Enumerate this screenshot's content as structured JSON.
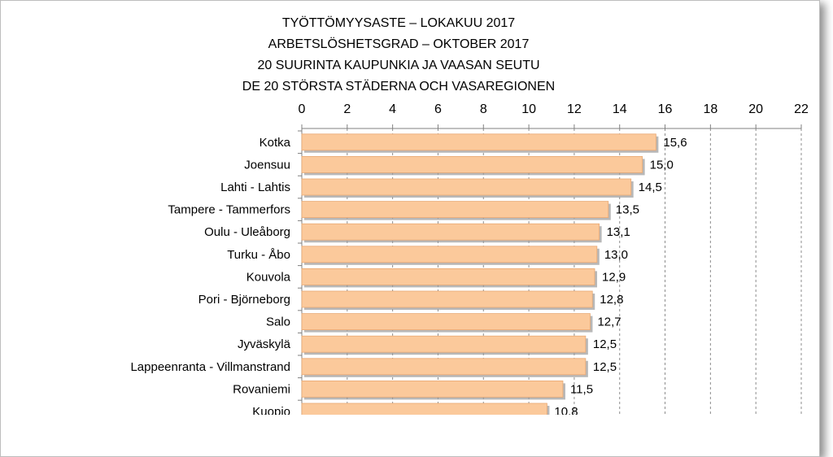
{
  "chart_data": {
    "type": "bar",
    "orientation": "horizontal",
    "title_lines": [
      "TYÖTTÖMYYSASTE  – LOKAKUU 2017",
      "ARBETSLÖSHETSGRAD – OKTOBER 2017",
      "20 SUURINTA KAUPUNKIA JA VAASAN SEUTU",
      "DE 20 STÖRSTA STÄDERNA OCH VASAREGIONEN"
    ],
    "xlim": [
      0,
      22
    ],
    "x_ticks": [
      "0",
      "2",
      "4",
      "6",
      "8",
      "10",
      "12",
      "14",
      "16",
      "18",
      "20",
      "22"
    ],
    "axis_position": "top",
    "grid": "vertical dashed",
    "bar_color": "#fbc99b",
    "categories": [
      "Kotka",
      "Joensuu",
      "Lahti - Lahtis",
      "Tampere - Tammerfors",
      "Oulu - Uleåborg",
      "Turku - Åbo",
      "Kouvola",
      "Pori - Björneborg",
      "Salo",
      "Jyväskylä",
      "Lappeenranta - Villmanstrand",
      "Rovaniemi",
      "Kuopio"
    ],
    "values": [
      15.6,
      15.0,
      14.5,
      13.5,
      13.1,
      13.0,
      12.9,
      12.8,
      12.7,
      12.5,
      12.5,
      11.5,
      10.8
    ],
    "value_labels": [
      "15,6",
      "15,0",
      "14,5",
      "13,5",
      "13,1",
      "13,0",
      "12,9",
      "12,8",
      "12,7",
      "12,5",
      "12,5",
      "11,5",
      "10,8"
    ]
  }
}
